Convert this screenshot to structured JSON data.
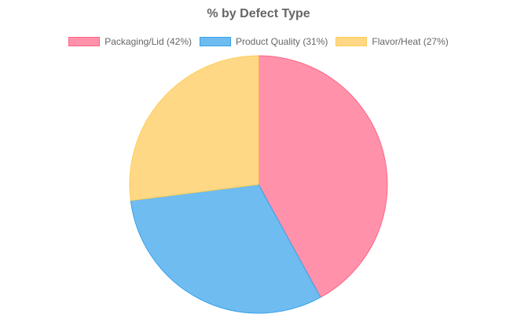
{
  "chart_data": {
    "type": "pie",
    "title": "% by Defect Type",
    "legend_position": "top",
    "categories": [
      "Packaging/Lid (42%)",
      "Product Quality (31%)",
      "Flavor/Heat (27%)"
    ],
    "values": [
      42,
      31,
      27
    ],
    "colors": [
      "#ff92aa",
      "#6fbcf0",
      "#ffd886"
    ],
    "border_colors": [
      "#ff6384",
      "#36a2eb",
      "#ffcd56"
    ]
  }
}
